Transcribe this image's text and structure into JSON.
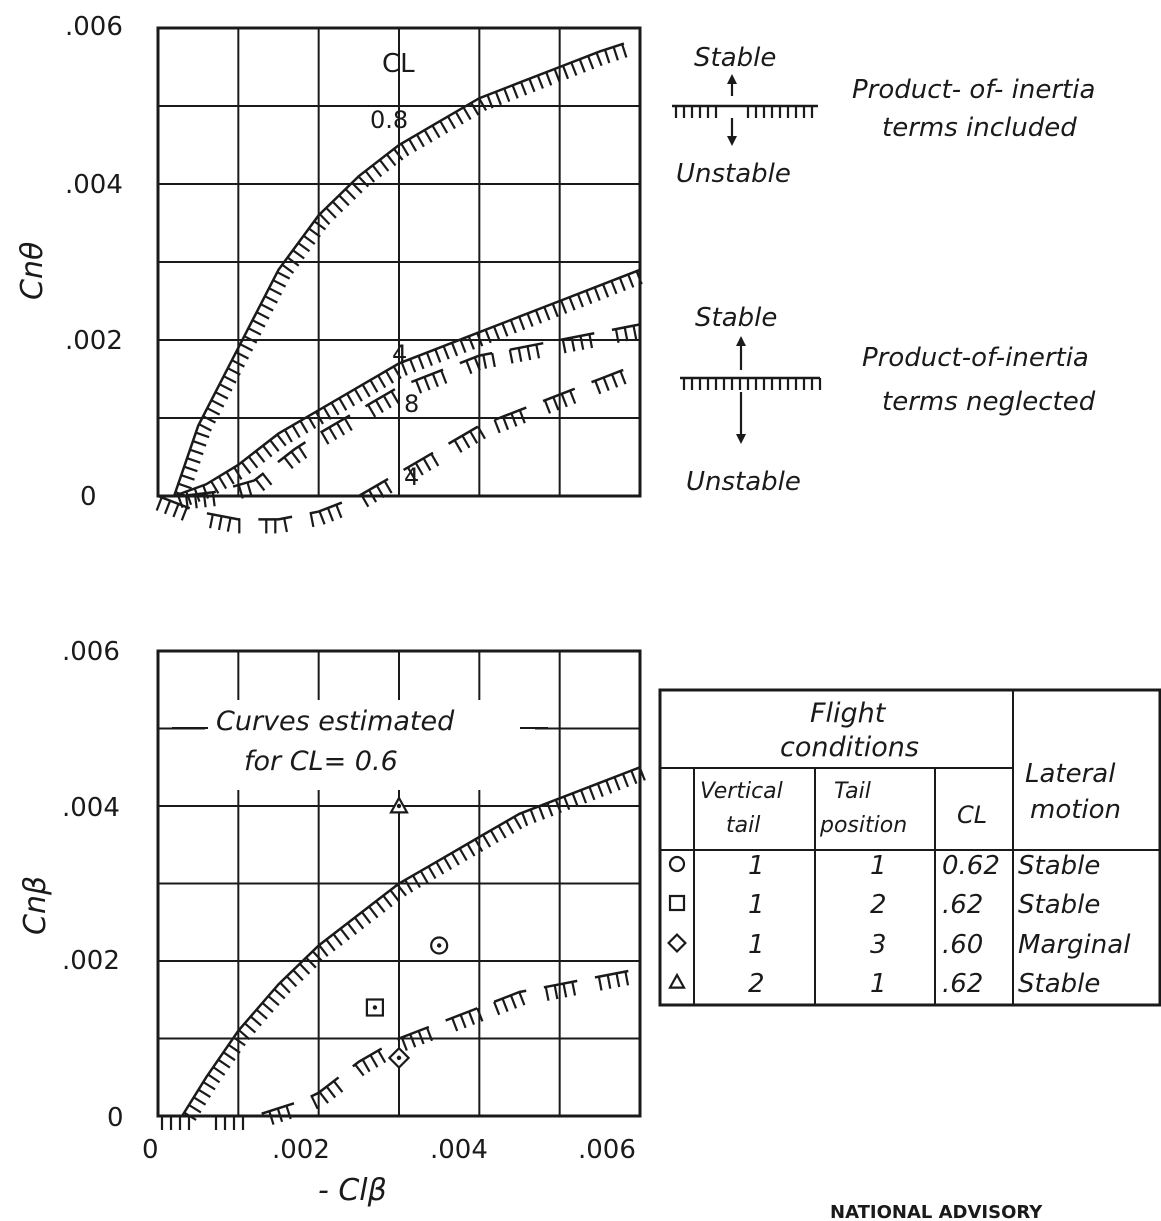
{
  "chart_data": [
    {
      "type": "line",
      "xlim": [
        0,
        0.006
      ],
      "ylim": [
        0,
        0.006
      ],
      "grid": true,
      "ylabel": "Cnθ",
      "yticks": [
        ".006",
        ".004",
        ".002",
        "0"
      ],
      "legend_header": "CL",
      "series": [
        {
          "name": "0.8",
          "group": "included",
          "style": "solid",
          "x": [
            0.0002,
            0.0005,
            0.001,
            0.0015,
            0.002,
            0.0025,
            0.003,
            0.0035,
            0.004,
            0.0045,
            0.005,
            0.0055,
            0.0058
          ],
          "y": [
            0.0,
            0.0009,
            0.0019,
            0.0029,
            0.0036,
            0.0041,
            0.0045,
            0.0048,
            0.0051,
            0.0053,
            0.0055,
            0.0057,
            0.0058
          ]
        },
        {
          "name": "4",
          "group": "included",
          "style": "solid",
          "x": [
            0.0002,
            0.0006,
            0.001,
            0.0015,
            0.002,
            0.0025,
            0.003,
            0.0035,
            0.004,
            0.0045,
            0.005,
            0.0055,
            0.006
          ],
          "y": [
            0.0,
            0.00015,
            0.0004,
            0.0008,
            0.0011,
            0.0014,
            0.0017,
            0.0019,
            0.0021,
            0.0023,
            0.0025,
            0.0027,
            0.0029
          ]
        },
        {
          "name": "8",
          "group": "neglected",
          "style": "dashed",
          "x": [
            0.0003,
            0.0007,
            0.0012,
            0.0017,
            0.002,
            0.0025,
            0.003,
            0.0035,
            0.004,
            0.0045,
            0.005,
            0.0055,
            0.006
          ],
          "y": [
            0.0,
            5e-05,
            0.0002,
            0.0006,
            0.0008,
            0.0011,
            0.0014,
            0.0016,
            0.0018,
            0.0019,
            0.002,
            0.0021,
            0.0022
          ]
        },
        {
          "name": "4",
          "group": "neglected",
          "style": "dashed",
          "x": [
            0.0,
            0.0005,
            0.001,
            0.0015,
            0.002,
            0.0025,
            0.003,
            0.0035,
            0.004,
            0.0045,
            0.005,
            0.0055,
            0.006
          ],
          "y": [
            0.0,
            -0.0002,
            -0.0003,
            -0.0003,
            -0.0002,
            0.0,
            0.0003,
            0.0006,
            0.0009,
            0.0011,
            0.0013,
            0.0015,
            0.0017
          ]
        }
      ],
      "legend": {
        "included": {
          "top": "Stable",
          "bottom": "Unstable",
          "text": [
            "Product- of- inertia",
            "terms included"
          ]
        },
        "neglected": {
          "top": "Stable",
          "bottom": "Unstable",
          "text": [
            "Product-of-inertia",
            "terms neglected"
          ]
        }
      }
    },
    {
      "type": "scatter",
      "xlim": [
        0,
        0.006
      ],
      "ylim": [
        0,
        0.006
      ],
      "grid": true,
      "xlabel": "- Clβ",
      "ylabel": "Cnβ",
      "xticks": [
        "0",
        ".002",
        ".004",
        ".006"
      ],
      "yticks": [
        ".006",
        ".004",
        ".002",
        "0"
      ],
      "annotation": [
        "Curves estimated",
        "for CL= 0.6"
      ],
      "series": [
        {
          "style": "solid",
          "x": [
            0.0003,
            0.0006,
            0.001,
            0.0015,
            0.002,
            0.0025,
            0.003,
            0.0035,
            0.004,
            0.0045,
            0.005,
            0.0055,
            0.006
          ],
          "y": [
            0.0,
            0.0005,
            0.0011,
            0.0017,
            0.0022,
            0.0026,
            0.003,
            0.0033,
            0.0036,
            0.0039,
            0.0041,
            0.0043,
            0.0045
          ]
        },
        {
          "style": "dashed",
          "x": [
            0.0,
            0.0005,
            0.0012,
            0.0018,
            0.002,
            0.0025,
            0.003,
            0.0035,
            0.004,
            0.0045,
            0.005,
            0.0055,
            0.006
          ],
          "y": [
            0.0,
            0.0,
            0.0,
            0.0002,
            0.0003,
            0.0007,
            0.001,
            0.0012,
            0.0014,
            0.0016,
            0.0017,
            0.0018,
            0.0019
          ]
        }
      ],
      "points": [
        {
          "marker": "circle",
          "x": 0.0035,
          "y": 0.0022
        },
        {
          "marker": "square",
          "x": 0.0027,
          "y": 0.0014
        },
        {
          "marker": "diamond",
          "x": 0.003,
          "y": 0.00075
        },
        {
          "marker": "triangle",
          "x": 0.003,
          "y": 0.004
        }
      ]
    }
  ],
  "table": {
    "header_group": [
      "Flight",
      "conditions"
    ],
    "header_result": [
      "Lateral",
      "motion"
    ],
    "columns": [
      [
        "Vertical",
        "tail"
      ],
      [
        "Tail",
        "position"
      ],
      [
        "CL"
      ]
    ],
    "rows": [
      {
        "marker": "circle",
        "vertical_tail": "1",
        "tail_position": "1",
        "cl": "0.62",
        "lateral_motion": "Stable"
      },
      {
        "marker": "square",
        "vertical_tail": "1",
        "tail_position": "2",
        "cl": ".62",
        "lateral_motion": "Stable"
      },
      {
        "marker": "diamond",
        "vertical_tail": "1",
        "tail_position": "3",
        "cl": ".60",
        "lateral_motion": "Marginal"
      },
      {
        "marker": "triangle",
        "vertical_tail": "2",
        "tail_position": "1",
        "cl": ".62",
        "lateral_motion": "Stable"
      }
    ]
  },
  "footer": "NATIONAL ADVISORY"
}
